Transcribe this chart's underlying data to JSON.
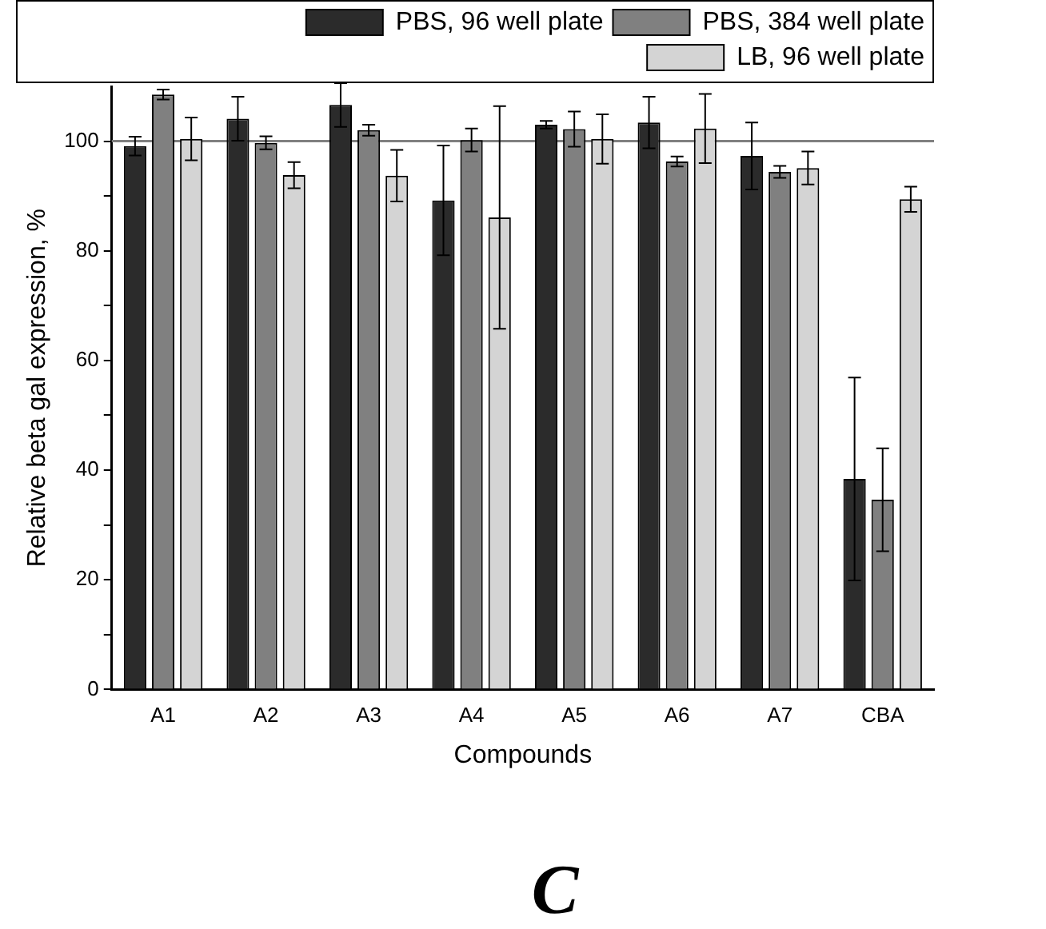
{
  "chart_data": {
    "type": "bar",
    "xlabel": "Compounds",
    "ylabel": "Relative beta gal expression, %",
    "categories": [
      "A1",
      "A2",
      "A3",
      "A4",
      "A5",
      "A6",
      "A7",
      "CBA"
    ],
    "series": [
      {
        "name": "PBS, 96 well plate",
        "color": "#2b2b2b",
        "values": [
          99.1,
          104.1,
          106.6,
          89.2,
          103,
          103.4,
          97.3,
          38.4
        ],
        "errors": [
          1.7,
          4,
          4,
          10,
          0.7,
          4.7,
          6.1,
          18.5
        ]
      },
      {
        "name": "PBS, 384 well plate",
        "color": "#808080",
        "values": [
          108.5,
          99.7,
          102,
          100.2,
          102.2,
          96.3,
          94.4,
          34.6
        ],
        "errors": [
          0.9,
          1.2,
          1,
          2.1,
          3.2,
          0.9,
          1.1,
          9.4
        ]
      },
      {
        "name": "LB, 96 well plate",
        "color": "#d4d4d4",
        "values": [
          100.4,
          93.8,
          93.7,
          86.1,
          100.4,
          102.3,
          95.1,
          89.4
        ],
        "errors": [
          3.9,
          2.4,
          4.7,
          20.3,
          4.5,
          6.3,
          3,
          2.3
        ]
      }
    ],
    "ylim": [
      0,
      110
    ],
    "yticks": [
      0,
      {
        "value": 10,
        "label": null
      },
      20,
      {
        "value": 30,
        "label": null
      },
      40,
      {
        "value": 50,
        "label": null
      },
      60,
      {
        "value": 70,
        "label": null
      },
      80,
      {
        "value": 90,
        "label": null
      },
      100
    ],
    "ref_lines": [
      {
        "axis": "y",
        "value": 100,
        "label": null,
        "color": "#808080"
      }
    ],
    "legend": "top",
    "grid": false,
    "annotations": [
      "C"
    ]
  }
}
